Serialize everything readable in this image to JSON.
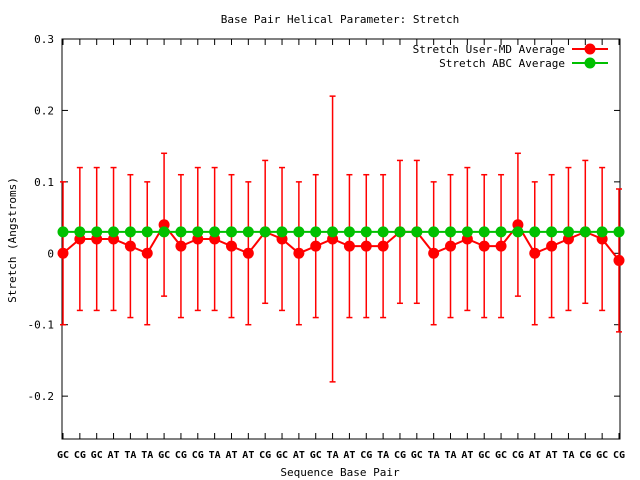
{
  "chart_data": {
    "type": "line",
    "title": "Base Pair Helical Parameter: Stretch",
    "xlabel": "Sequence Base Pair",
    "ylabel": "Stretch (Angstroms)",
    "ylim": [
      -0.26,
      0.3
    ],
    "yticks": [
      -0.2,
      -0.1,
      0,
      0.1,
      0.2,
      0.3
    ],
    "ytick_labels": [
      "-0.2",
      "-0.1",
      "0",
      "0.1",
      "0.2",
      "0.3"
    ],
    "grid": false,
    "legend_position": "top-right",
    "categories": [
      "GC",
      "CG",
      "GC",
      "AT",
      "TA",
      "TA",
      "GC",
      "CG",
      "CG",
      "TA",
      "AT",
      "AT",
      "CG",
      "GC",
      "AT",
      "GC",
      "TA",
      "AT",
      "CG",
      "TA",
      "CG",
      "GC",
      "TA",
      "TA",
      "AT",
      "GC",
      "GC",
      "CG",
      "AT",
      "AT",
      "TA",
      "CG",
      "GC",
      "CG"
    ],
    "series": [
      {
        "name": "Stretch User-MD Average",
        "color": "#ff0000",
        "values": [
          0.0,
          0.02,
          0.02,
          0.02,
          0.01,
          0.0,
          0.04,
          0.01,
          0.02,
          0.02,
          0.01,
          0.0,
          0.03,
          0.02,
          0.0,
          0.01,
          0.02,
          0.01,
          0.01,
          0.01,
          0.03,
          0.03,
          0.0,
          0.01,
          0.02,
          0.01,
          0.01,
          0.04,
          0.0,
          0.01,
          0.02,
          0.03,
          0.02,
          -0.01
        ],
        "error_low": [
          -0.1,
          -0.08,
          -0.08,
          -0.08,
          -0.09,
          -0.1,
          -0.06,
          -0.09,
          -0.08,
          -0.08,
          -0.09,
          -0.1,
          -0.07,
          -0.08,
          -0.1,
          -0.09,
          -0.18,
          -0.09,
          -0.09,
          -0.09,
          -0.07,
          -0.07,
          -0.1,
          -0.09,
          -0.08,
          -0.09,
          -0.09,
          -0.06,
          -0.1,
          -0.09,
          -0.08,
          -0.07,
          -0.08,
          -0.11
        ],
        "error_high": [
          0.1,
          0.12,
          0.12,
          0.12,
          0.11,
          0.1,
          0.14,
          0.11,
          0.12,
          0.12,
          0.11,
          0.1,
          0.13,
          0.12,
          0.1,
          0.11,
          0.22,
          0.11,
          0.11,
          0.11,
          0.13,
          0.13,
          0.1,
          0.11,
          0.12,
          0.11,
          0.11,
          0.14,
          0.1,
          0.11,
          0.12,
          0.13,
          0.12,
          0.09
        ]
      },
      {
        "name": "Stretch ABC Average",
        "color": "#00c000",
        "values": [
          0.03,
          0.03,
          0.03,
          0.03,
          0.03,
          0.03,
          0.03,
          0.03,
          0.03,
          0.03,
          0.03,
          0.03,
          0.03,
          0.03,
          0.03,
          0.03,
          0.03,
          0.03,
          0.03,
          0.03,
          0.03,
          0.03,
          0.03,
          0.03,
          0.03,
          0.03,
          0.03,
          0.03,
          0.03,
          0.03,
          0.03,
          0.03,
          0.03,
          0.03
        ]
      }
    ]
  }
}
